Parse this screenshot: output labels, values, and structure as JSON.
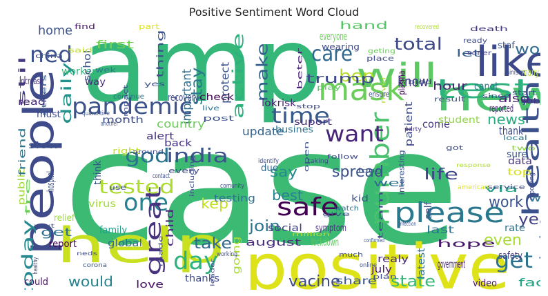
{
  "title": "Positive Sentiment Word Cloud",
  "words": [
    {
      "text": "case",
      "color": "#3cba74"
    },
    {
      "text": "amp",
      "color": "#35b779"
    },
    {
      "text": "positive",
      "color": "#dde318"
    },
    {
      "text": "help",
      "color": "#c8e020"
    },
    {
      "text": "people",
      "color": "#3e4a89"
    },
    {
      "text": "new",
      "color": "#4ac16d"
    },
    {
      "text": "like",
      "color": "#3e4989"
    },
    {
      "text": "will",
      "color": "#5ec962"
    },
    {
      "text": "mask",
      "color": "#6ccd5a"
    },
    {
      "text": "pandemic",
      "color": "#3b528b"
    },
    {
      "text": "test",
      "color": "#2db27d"
    },
    {
      "text": "care",
      "color": "#31688e"
    },
    {
      "text": "time",
      "color": "#38598c"
    },
    {
      "text": "health",
      "color": "#3b518b"
    },
    {
      "text": "please",
      "color": "#2a788e"
    },
    {
      "text": "number",
      "color": "#4ac16d"
    },
    {
      "text": "safe",
      "color": "#440154"
    },
    {
      "text": "want",
      "color": "#482576"
    },
    {
      "text": "one",
      "color": "#26828e"
    },
    {
      "text": "india",
      "color": "#3b528b"
    },
    {
      "text": "god",
      "color": "#2c728e"
    },
    {
      "text": "day",
      "color": "#2db27d"
    },
    {
      "text": "get",
      "color": "#2c728e"
    },
    {
      "text": "great",
      "color": "#46327e"
    },
    {
      "text": "ned",
      "color": "#3b528b"
    },
    {
      "text": "tested",
      "color": "#addc30"
    },
    {
      "text": "world",
      "color": "#306a8e"
    },
    {
      "text": "ben",
      "color": "#b5de2b"
    },
    {
      "text": "make",
      "color": "#33638d"
    },
    {
      "text": "stay",
      "color": "#2a778e"
    },
    {
      "text": "active",
      "color": "#2db27d"
    },
    {
      "text": "total",
      "color": "#3e4a89"
    },
    {
      "text": "today",
      "color": "#23898e"
    },
    {
      "text": "daily",
      "color": "#21918c"
    },
    {
      "text": "say",
      "color": "#238a8d"
    },
    {
      "text": "know",
      "color": "#433e85"
    },
    {
      "text": "news",
      "color": "#28ae80"
    },
    {
      "text": "life",
      "color": "#3f4788"
    },
    {
      "text": "spread",
      "color": "#3b528b"
    },
    {
      "text": "best",
      "color": "#26828e"
    },
    {
      "text": "work",
      "color": "#3a548c"
    },
    {
      "text": "join",
      "color": "#2b748e"
    },
    {
      "text": "year",
      "color": "#424186"
    },
    {
      "text": "kep",
      "color": "#c2df23"
    },
    {
      "text": "take",
      "color": "#31688e"
    },
    {
      "text": "would",
      "color": "#26828e"
    },
    {
      "text": "vacine",
      "color": "#3e4a89"
    },
    {
      "text": "state",
      "color": "#35b779"
    },
    {
      "text": "even",
      "color": "#a8db34"
    },
    {
      "text": "get",
      "color": "#2c728e"
    },
    {
      "text": "home",
      "color": "#3b528b"
    },
    {
      "text": "first",
      "color": "#73d056"
    },
    {
      "text": "trump",
      "color": "#3e4989"
    },
    {
      "text": "important",
      "color": "#2d708e"
    },
    {
      "text": "country",
      "color": "#6ccd5a"
    },
    {
      "text": "august",
      "color": "#472d7b"
    },
    {
      "text": "lockdown",
      "color": "#5ec962"
    },
    {
      "text": "share",
      "color": "#39568c"
    },
    {
      "text": "update",
      "color": "#33638d"
    },
    {
      "text": "protect",
      "color": "#3b528b"
    },
    {
      "text": "hand",
      "color": "#56c667"
    },
    {
      "text": "everyone",
      "color": "#6ccd5a"
    },
    {
      "text": "hour",
      "color": "#482374"
    },
    {
      "text": "canot",
      "color": "#2a788e"
    },
    {
      "text": "also",
      "color": "#482173"
    },
    {
      "text": "many",
      "color": "#addc30"
    },
    {
      "text": "let",
      "color": "#365d8d"
    },
    {
      "text": "come",
      "color": "#443983"
    },
    {
      "text": "thank",
      "color": "#3e4a89"
    },
    {
      "text": "last",
      "color": "#2c728e"
    },
    {
      "text": "hope",
      "color": "#481a6c"
    },
    {
      "text": "government",
      "color": "#481f70"
    },
    {
      "text": "face",
      "color": "#20a486"
    },
    {
      "text": "safety",
      "color": "#433e85"
    },
    {
      "text": "wear",
      "color": "#2d708e"
    },
    {
      "text": "testing",
      "color": "#2c728e"
    },
    {
      "text": "symptom",
      "color": "#472f7d"
    },
    {
      "text": "social",
      "color": "#424186"
    },
    {
      "text": "going",
      "color": "#a8db34"
    },
    {
      "text": "thanks",
      "color": "#3e4a89"
    },
    {
      "text": "global",
      "color": "#31688e"
    },
    {
      "text": "report",
      "color": "#440154"
    },
    {
      "text": "could",
      "color": "#481467"
    },
    {
      "text": "love",
      "color": "#470d60"
    },
    {
      "text": "child",
      "color": "#482878"
    },
    {
      "text": "family",
      "color": "#1f9e89"
    },
    {
      "text": "virus",
      "color": "#a2da37"
    },
    {
      "text": "think",
      "color": "#39568c"
    },
    {
      "text": "back",
      "color": "#46327e"
    },
    {
      "text": "alert",
      "color": "#46327e"
    },
    {
      "text": "right",
      "color": "#bddf26"
    },
    {
      "text": "month",
      "color": "#3d4e8a"
    },
    {
      "text": "recovery",
      "color": "#3e4989"
    },
    {
      "text": "check",
      "color": "#440154"
    },
    {
      "text": "worker",
      "color": "#35b779"
    },
    {
      "text": "schol",
      "color": "#3b528b"
    },
    {
      "text": "thing",
      "color": "#3b528b"
    },
    {
      "text": "lokrisk",
      "color": "#482576"
    },
    {
      "text": "suport",
      "color": "#472d7b"
    },
    {
      "text": "busines",
      "color": "#2d708e"
    },
    {
      "text": "patient",
      "color": "#3e4a89"
    },
    {
      "text": "student",
      "color": "#8fd744"
    },
    {
      "text": "wearing",
      "color": "#3e4a89"
    },
    {
      "text": "reported",
      "color": "#482576"
    },
    {
      "text": "sure",
      "color": "#39568c"
    },
    {
      "text": "top",
      "color": "#d5e21a"
    },
    {
      "text": "data",
      "color": "#46337f"
    },
    {
      "text": "rate",
      "color": "#2d708e"
    },
    {
      "text": "self",
      "color": "#3b528b"
    },
    {
      "text": "via",
      "color": "#20a386"
    },
    {
      "text": "latest",
      "color": "#2d718e"
    },
    {
      "text": "realy",
      "color": "#482878"
    },
    {
      "text": "video",
      "color": "#481769"
    },
    {
      "text": "july",
      "color": "#481b6d"
    },
    {
      "text": "due",
      "color": "#31688e"
    },
    {
      "text": "kid",
      "color": "#3b528b"
    },
    {
      "text": "wel",
      "color": "#2c728e"
    },
    {
      "text": "public",
      "color": "#9fda3a"
    },
    {
      "text": "friend",
      "color": "#2a778e"
    },
    {
      "text": "hospital",
      "color": "#3b528b"
    },
    {
      "text": "stil",
      "color": "#443a83"
    },
    {
      "text": "increase",
      "color": "#46327e"
    },
    {
      "text": "read",
      "color": "#482677"
    },
    {
      "text": "must",
      "color": "#3e4a89"
    },
    {
      "text": "slow",
      "color": "#3b528b"
    },
    {
      "text": "relief",
      "color": "#99d83d"
    },
    {
      "text": "way",
      "color": "#472d7b"
    },
    {
      "text": "wek",
      "color": "#2a778e"
    },
    {
      "text": "post",
      "color": "#3b528b"
    },
    {
      "text": "schols",
      "color": "#39568c"
    },
    {
      "text": "reporting",
      "color": "#3e4989"
    },
    {
      "text": "death",
      "color": "#453781"
    },
    {
      "text": "minister",
      "color": "#3d4e8a"
    },
    {
      "text": "staf",
      "color": "#3b528b"
    },
    {
      "text": "job",
      "color": "#46327e"
    },
    {
      "text": "find",
      "color": "#481c6e"
    },
    {
      "text": "part",
      "color": "#dde318"
    },
    {
      "text": "said",
      "color": "#bddf26"
    },
    {
      "text": "ready",
      "color": "#3e4a89"
    },
    {
      "text": "soner",
      "color": "#424086"
    },
    {
      "text": "start",
      "color": "#3b528b"
    },
    {
      "text": "place",
      "color": "#3e4a89"
    },
    {
      "text": "geting",
      "color": "#6ccd5a"
    },
    {
      "text": "plasma",
      "color": "#440154"
    },
    {
      "text": "blod",
      "color": "#3e4a89"
    },
    {
      "text": "beter",
      "color": "#482576"
    },
    {
      "text": "recovered",
      "color": "#addc30"
    },
    {
      "text": "never",
      "color": "#b5de2b"
    },
    {
      "text": "result",
      "color": "#3b528b"
    },
    {
      "text": "ensure",
      "color": "#3e4a89"
    },
    {
      "text": "play",
      "color": "#5ec962"
    },
    {
      "text": "china",
      "color": "#3e4a89"
    },
    {
      "text": "others",
      "color": "#39568c"
    },
    {
      "text": "quarantine",
      "color": "#3b528b"
    },
    {
      "text": "impact",
      "color": "#3e4a89"
    },
    {
      "text": "continue",
      "color": "#2c728e"
    },
    {
      "text": "another",
      "color": "#3b528b"
    },
    {
      "text": "live",
      "color": "#2c728e"
    },
    {
      "text": "yes",
      "color": "#3b528b"
    },
    {
      "text": "stop",
      "color": "#3e4a89"
    },
    {
      "text": "party",
      "color": "#46327e"
    },
    {
      "text": "got",
      "color": "#3e4a89"
    },
    {
      "text": "two",
      "color": "#8fd744"
    },
    {
      "text": "local",
      "color": "#2a778e"
    },
    {
      "text": "since",
      "color": "#3e4a89"
    },
    {
      "text": "follow",
      "color": "#3e4a89"
    },
    {
      "text": "identify",
      "color": "#3e4a89"
    },
    {
      "text": "open",
      "color": "#3b528b"
    },
    {
      "text": "taking",
      "color": "#3e4a89"
    },
    {
      "text": "long",
      "color": "#3b528b"
    },
    {
      "text": "every",
      "color": "#3e4a89"
    },
    {
      "text": "around",
      "color": "#3e4a89"
    },
    {
      "text": "contact",
      "color": "#3e4a89"
    },
    {
      "text": "use",
      "color": "#3e4a89"
    },
    {
      "text": "fre",
      "color": "#6ccd5a"
    },
    {
      "text": "including",
      "color": "#3e4a89"
    },
    {
      "text": "comunity",
      "color": "#3e4a89"
    },
    {
      "text": "watch",
      "color": "#2c728e"
    },
    {
      "text": "team",
      "color": "#3e4a89"
    },
    {
      "text": "interesting",
      "color": "#3b528b"
    },
    {
      "text": "response",
      "color": "#addc30"
    },
    {
      "text": "american",
      "color": "#dde318"
    },
    {
      "text": "service",
      "color": "#3e4a89"
    },
    {
      "text": "infection",
      "color": "#3b528b"
    },
    {
      "text": "give",
      "color": "#3e4a89"
    },
    {
      "text": "million",
      "color": "#b5de2b"
    },
    {
      "text": "confirmed",
      "color": "#3b528b"
    },
    {
      "text": "neds",
      "color": "#3e4a89"
    },
    {
      "text": "made",
      "color": "#3e4a89"
    },
    {
      "text": "working",
      "color": "#3e4a89"
    },
    {
      "text": "much",
      "color": "#3e4a89"
    },
    {
      "text": "online",
      "color": "#3e4a89"
    },
    {
      "text": "plan",
      "color": "#3e4a89"
    },
    {
      "text": "corona",
      "color": "#3b528b"
    },
    {
      "text": "leader",
      "color": "#3e4a89"
    },
    {
      "text": "healthy",
      "color": "#3e4a89"
    },
    {
      "text": "next",
      "color": "#3b528b"
    },
    {
      "text": "show",
      "color": "#3e4a89"
    }
  ]
}
